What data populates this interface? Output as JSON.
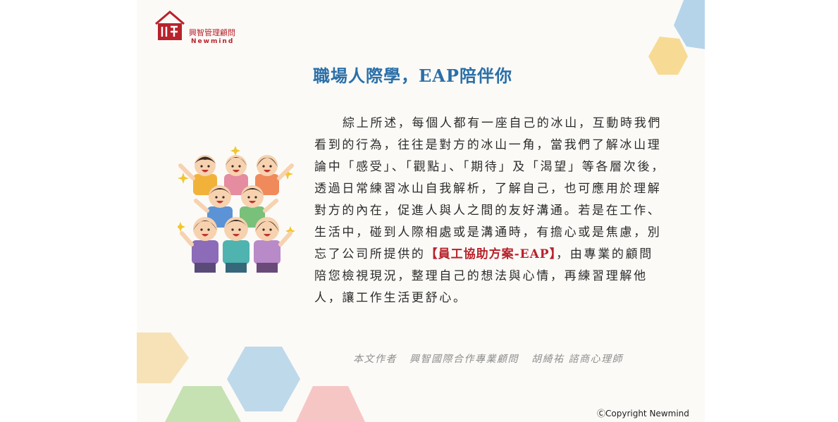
{
  "logo": {
    "name_cn": "興智管理顧問",
    "name_en": "Newmind"
  },
  "title": "職場人際學，EAP陪伴你",
  "body": {
    "before": "綜上所述，每個人都有一座自己的冰山，互動時我們看到的行為，往往是對方的冰山一角，當我們了解冰山理論中「感受」、「觀點」、「期待」及「渴望」等各層次後，透過日常練習冰山自我解析，了解自己，也可應用於理解對方的內在，促進人與人之間的友好溝通。若是在工作、生活中，碰到人際相處或是溝通時，有擔心或是焦慮，別忘了公司所提供的",
    "highlight": "【員工協助方案-EAP】",
    "after": "，由專業的顧問陪您檢視現況，整理自己的想法與心情，再練習理解他人，讓工作生活更舒心。"
  },
  "author": {
    "label": "本文作者",
    "org": "興智國際合作專業顧問",
    "name": "胡綺祐 諮商心理師"
  },
  "copyright": "ⒸCopyright Newmind",
  "colors": {
    "title": "#2a6fa8",
    "highlight": "#b8222b",
    "brand": "#b8222b"
  }
}
